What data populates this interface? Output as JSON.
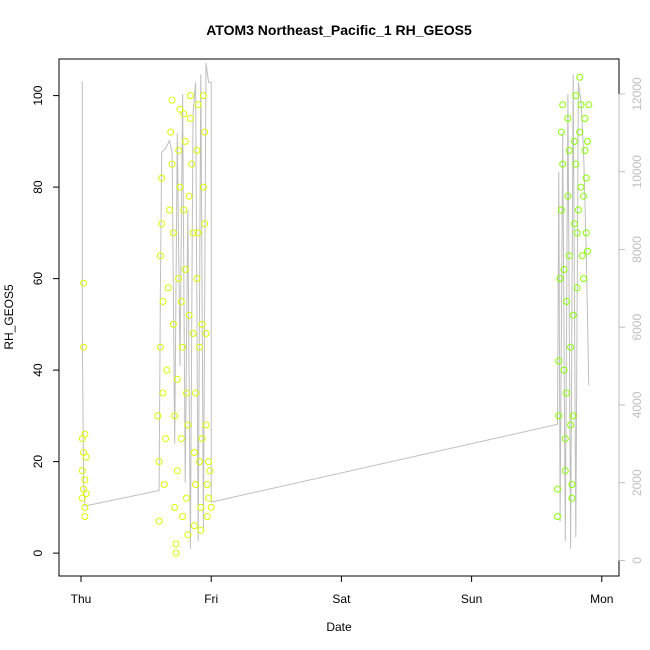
{
  "chart_data": {
    "type": "scatter",
    "title": "ATOM3 Northeast_Pacific_1 RH_GEOS5",
    "xlabel": "Date",
    "ylabel": "RH_GEOS5",
    "x_ticks": [
      "Thu",
      "Fri",
      "Sat",
      "Sun",
      "Mon"
    ],
    "y_ticks": [
      0,
      20,
      40,
      60,
      80,
      100
    ],
    "y2_ticks": [
      0,
      2000,
      4000,
      6000,
      8000,
      10000,
      12000
    ],
    "ylim": [
      -5,
      108
    ],
    "y2lim": [
      -400,
      12900
    ],
    "colors": {
      "rh_low": "#ddff00",
      "rh_high": "#88ff00",
      "altitude_line": "#bebebe",
      "axis": "#000000",
      "secondary_axis": "#bebebe"
    },
    "series": [
      {
        "type": "scatter",
        "points": [
          {
            "x": 0.01,
            "y": 12
          },
          {
            "x": 0.01,
            "y": 18
          },
          {
            "x": 0.01,
            "y": 25
          },
          {
            "x": 0.02,
            "y": 45
          },
          {
            "x": 0.02,
            "y": 59
          },
          {
            "x": 0.02,
            "y": 14
          },
          {
            "x": 0.02,
            "y": 22
          },
          {
            "x": 0.03,
            "y": 8
          },
          {
            "x": 0.03,
            "y": 16
          },
          {
            "x": 0.03,
            "y": 26
          },
          {
            "x": 0.03,
            "y": 10
          },
          {
            "x": 0.04,
            "y": 21
          },
          {
            "x": 0.04,
            "y": 13
          },
          {
            "x": 0.59,
            "y": 30
          },
          {
            "x": 0.6,
            "y": 7
          },
          {
            "x": 0.6,
            "y": 20
          },
          {
            "x": 0.61,
            "y": 45
          },
          {
            "x": 0.61,
            "y": 65
          },
          {
            "x": 0.62,
            "y": 82
          },
          {
            "x": 0.62,
            "y": 72
          },
          {
            "x": 0.63,
            "y": 55
          },
          {
            "x": 0.63,
            "y": 35
          },
          {
            "x": 0.64,
            "y": 15
          },
          {
            "x": 0.65,
            "y": 25
          },
          {
            "x": 0.66,
            "y": 40
          },
          {
            "x": 0.67,
            "y": 58
          },
          {
            "x": 0.68,
            "y": 75
          },
          {
            "x": 0.69,
            "y": 92
          },
          {
            "x": 0.7,
            "y": 99
          },
          {
            "x": 0.7,
            "y": 85
          },
          {
            "x": 0.71,
            "y": 70
          },
          {
            "x": 0.71,
            "y": 50
          },
          {
            "x": 0.72,
            "y": 30
          },
          {
            "x": 0.72,
            "y": 10
          },
          {
            "x": 0.73,
            "y": 2
          },
          {
            "x": 0.73,
            "y": 0
          },
          {
            "x": 0.74,
            "y": 18
          },
          {
            "x": 0.74,
            "y": 38
          },
          {
            "x": 0.75,
            "y": 60
          },
          {
            "x": 0.75,
            "y": 88
          },
          {
            "x": 0.76,
            "y": 97
          },
          {
            "x": 0.76,
            "y": 80
          },
          {
            "x": 0.77,
            "y": 55
          },
          {
            "x": 0.77,
            "y": 25
          },
          {
            "x": 0.78,
            "y": 8
          },
          {
            "x": 0.78,
            "y": 45
          },
          {
            "x": 0.79,
            "y": 75
          },
          {
            "x": 0.79,
            "y": 96
          },
          {
            "x": 0.8,
            "y": 90
          },
          {
            "x": 0.8,
            "y": 62
          },
          {
            "x": 0.81,
            "y": 35
          },
          {
            "x": 0.81,
            "y": 12
          },
          {
            "x": 0.82,
            "y": 4
          },
          {
            "x": 0.82,
            "y": 28
          },
          {
            "x": 0.83,
            "y": 52
          },
          {
            "x": 0.83,
            "y": 78
          },
          {
            "x": 0.84,
            "y": 95
          },
          {
            "x": 0.84,
            "y": 100
          },
          {
            "x": 0.85,
            "y": 85
          },
          {
            "x": 0.86,
            "y": 70
          },
          {
            "x": 0.86,
            "y": 48
          },
          {
            "x": 0.87,
            "y": 22
          },
          {
            "x": 0.87,
            "y": 6
          },
          {
            "x": 0.88,
            "y": 15
          },
          {
            "x": 0.88,
            "y": 35
          },
          {
            "x": 0.89,
            "y": 60
          },
          {
            "x": 0.89,
            "y": 88
          },
          {
            "x": 0.9,
            "y": 98
          },
          {
            "x": 0.9,
            "y": 70
          },
          {
            "x": 0.91,
            "y": 45
          },
          {
            "x": 0.91,
            "y": 20
          },
          {
            "x": 0.92,
            "y": 10
          },
          {
            "x": 0.92,
            "y": 5
          },
          {
            "x": 0.93,
            "y": 25
          },
          {
            "x": 0.93,
            "y": 50
          },
          {
            "x": 0.94,
            "y": 80
          },
          {
            "x": 0.94,
            "y": 100
          },
          {
            "x": 0.95,
            "y": 92
          },
          {
            "x": 0.95,
            "y": 72
          },
          {
            "x": 0.96,
            "y": 48
          },
          {
            "x": 0.96,
            "y": 28
          },
          {
            "x": 0.97,
            "y": 15
          },
          {
            "x": 0.97,
            "y": 8
          },
          {
            "x": 0.98,
            "y": 20
          },
          {
            "x": 0.98,
            "y": 12
          },
          {
            "x": 0.99,
            "y": 18
          },
          {
            "x": 1.0,
            "y": 10
          },
          {
            "x": 3.66,
            "y": 8
          },
          {
            "x": 3.66,
            "y": 14
          },
          {
            "x": 3.67,
            "y": 30
          },
          {
            "x": 3.67,
            "y": 42
          },
          {
            "x": 3.68,
            "y": 60
          },
          {
            "x": 3.69,
            "y": 75
          },
          {
            "x": 3.69,
            "y": 92
          },
          {
            "x": 3.7,
            "y": 98
          },
          {
            "x": 3.7,
            "y": 85
          },
          {
            "x": 3.71,
            "y": 62
          },
          {
            "x": 3.71,
            "y": 40
          },
          {
            "x": 3.72,
            "y": 25
          },
          {
            "x": 3.72,
            "y": 18
          },
          {
            "x": 3.73,
            "y": 35
          },
          {
            "x": 3.73,
            "y": 55
          },
          {
            "x": 3.74,
            "y": 78
          },
          {
            "x": 3.74,
            "y": 95
          },
          {
            "x": 3.75,
            "y": 88
          },
          {
            "x": 3.75,
            "y": 65
          },
          {
            "x": 3.76,
            "y": 45
          },
          {
            "x": 3.76,
            "y": 28
          },
          {
            "x": 3.77,
            "y": 15
          },
          {
            "x": 3.77,
            "y": 12
          },
          {
            "x": 3.78,
            "y": 30
          },
          {
            "x": 3.78,
            "y": 52
          },
          {
            "x": 3.79,
            "y": 72
          },
          {
            "x": 3.79,
            "y": 90
          },
          {
            "x": 3.8,
            "y": 100
          },
          {
            "x": 3.8,
            "y": 85
          },
          {
            "x": 3.81,
            "y": 70
          },
          {
            "x": 3.81,
            "y": 58
          },
          {
            "x": 3.82,
            "y": 75
          },
          {
            "x": 3.83,
            "y": 92
          },
          {
            "x": 3.83,
            "y": 104
          },
          {
            "x": 3.84,
            "y": 98
          },
          {
            "x": 3.84,
            "y": 80
          },
          {
            "x": 3.85,
            "y": 65
          },
          {
            "x": 3.86,
            "y": 60
          },
          {
            "x": 3.86,
            "y": 78
          },
          {
            "x": 3.87,
            "y": 88
          },
          {
            "x": 3.87,
            "y": 95
          },
          {
            "x": 3.88,
            "y": 82
          },
          {
            "x": 3.88,
            "y": 70
          },
          {
            "x": 3.89,
            "y": 66
          },
          {
            "x": 3.89,
            "y": 90
          },
          {
            "x": 3.9,
            "y": 98
          }
        ]
      },
      {
        "type": "line",
        "axis": "secondary",
        "points": [
          {
            "x": 0.0,
            "y": 12300
          },
          {
            "x": 0.01,
            "y": 12300
          },
          {
            "x": 0.01,
            "y": 6000
          },
          {
            "x": 0.02,
            "y": 2000
          },
          {
            "x": 0.03,
            "y": 1400
          },
          {
            "x": 0.6,
            "y": 1800
          },
          {
            "x": 0.61,
            "y": 7000
          },
          {
            "x": 0.62,
            "y": 10500
          },
          {
            "x": 0.65,
            "y": 10600
          },
          {
            "x": 0.68,
            "y": 10800
          },
          {
            "x": 0.7,
            "y": 10500
          },
          {
            "x": 0.72,
            "y": 3000
          },
          {
            "x": 0.74,
            "y": 11000
          },
          {
            "x": 0.76,
            "y": 5000
          },
          {
            "x": 0.78,
            "y": 12000
          },
          {
            "x": 0.8,
            "y": 2000
          },
          {
            "x": 0.82,
            "y": 9000
          },
          {
            "x": 0.84,
            "y": 300
          },
          {
            "x": 0.86,
            "y": 11500
          },
          {
            "x": 0.88,
            "y": 12300
          },
          {
            "x": 0.9,
            "y": 500
          },
          {
            "x": 0.92,
            "y": 12500
          },
          {
            "x": 0.94,
            "y": 800
          },
          {
            "x": 0.96,
            "y": 12800
          },
          {
            "x": 0.98,
            "y": 12300
          },
          {
            "x": 1.0,
            "y": 12300
          },
          {
            "x": 1.0,
            "y": 1500
          },
          {
            "x": 3.66,
            "y": 3500
          },
          {
            "x": 3.67,
            "y": 10000
          },
          {
            "x": 3.68,
            "y": 1000
          },
          {
            "x": 3.7,
            "y": 11000
          },
          {
            "x": 3.72,
            "y": 500
          },
          {
            "x": 3.74,
            "y": 12000
          },
          {
            "x": 3.76,
            "y": 300
          },
          {
            "x": 3.78,
            "y": 12500
          },
          {
            "x": 3.8,
            "y": 600
          },
          {
            "x": 3.82,
            "y": 12300
          },
          {
            "x": 3.84,
            "y": 11800
          },
          {
            "x": 3.86,
            "y": 10500
          },
          {
            "x": 3.88,
            "y": 8000
          },
          {
            "x": 3.9,
            "y": 4500
          }
        ]
      }
    ]
  }
}
